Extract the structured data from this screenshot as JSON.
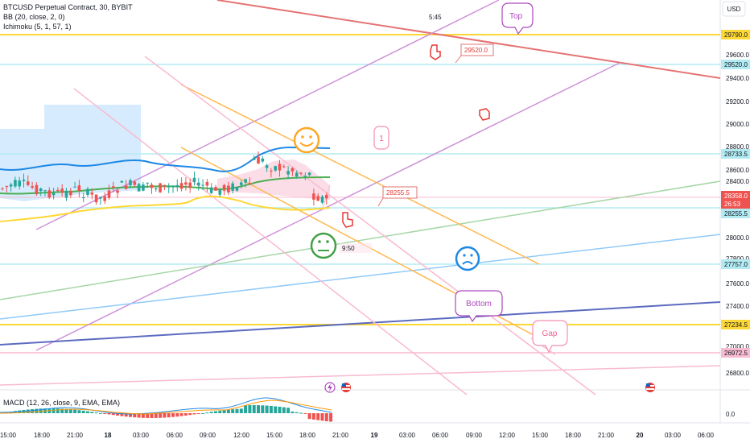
{
  "header": {
    "symbol_line": "BTCUSD Perpetual Contract, 30, BYBIT",
    "bb_line": "BB (20, close, 2, 0)",
    "ichimoku_line": "Ichimoku (5, 1, 57, 1)",
    "currency_button": "USD"
  },
  "macd": {
    "label": "MACD (12, 26, close, 9, EMA, EMA)",
    "zero_label": "0.0"
  },
  "price_axis": {
    "ticks": [
      "29600.0",
      "29400.0",
      "29200.0",
      "29000.0",
      "28800.0",
      "28600.0",
      "28400.0",
      "28000.0",
      "27800.0",
      "27600.0",
      "27400.0",
      "27000.0",
      "26800.0"
    ],
    "badges": {
      "b29790": "29790.0",
      "b29520": "29520.0",
      "b28733": "28733.5",
      "b28358": "28358.0",
      "b_timer": "26:53",
      "b28255": "28255.5",
      "b27757": "27757.0",
      "b27234": "27234.5",
      "b26972": "26972.5"
    }
  },
  "time_axis": [
    "15:00",
    "18:00",
    "21:00",
    "18",
    "03:00",
    "06:00",
    "09:00",
    "12:00",
    "15:00",
    "18:00",
    "21:00",
    "19",
    "03:00",
    "06:00",
    "09:00",
    "12:00",
    "15:00",
    "18:00",
    "21:00",
    "20",
    "03:00",
    "06:00"
  ],
  "annotations": {
    "top": "Top",
    "bottom": "Bottom",
    "gap": "Gap",
    "one": "1",
    "price_29520": "29520.0",
    "price_28255": "28255.5",
    "time_545": "5:45",
    "time_950": "9:50"
  },
  "colors": {
    "up": "#26a69a",
    "down": "#ef5350",
    "bb_mid": "#4caf50",
    "bb_upper": "#1e88e5",
    "bb_lower": "#fbc02d",
    "cloud": "#bbdefb",
    "purple": "#c26ae0",
    "orange": "#ffa726",
    "pink": "#f8bbd0",
    "red_line": "#e57373"
  }
}
